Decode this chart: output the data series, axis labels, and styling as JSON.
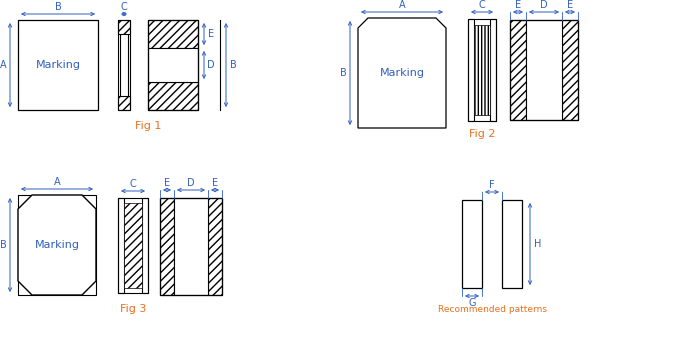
{
  "fig_label_color": "#E87020",
  "dim_color": "#3060C0",
  "line_color": "#000000",
  "bg_color": "#FFFFFF",
  "text_marking": "Marking",
  "fig1_label": "Fig 1",
  "fig2_label": "Fig 2",
  "fig3_label": "Fig 3",
  "rec_label": "Recommended patterns",
  "fig_label_fontsize": 8,
  "dim_fontsize": 7,
  "marking_fontsize": 8
}
